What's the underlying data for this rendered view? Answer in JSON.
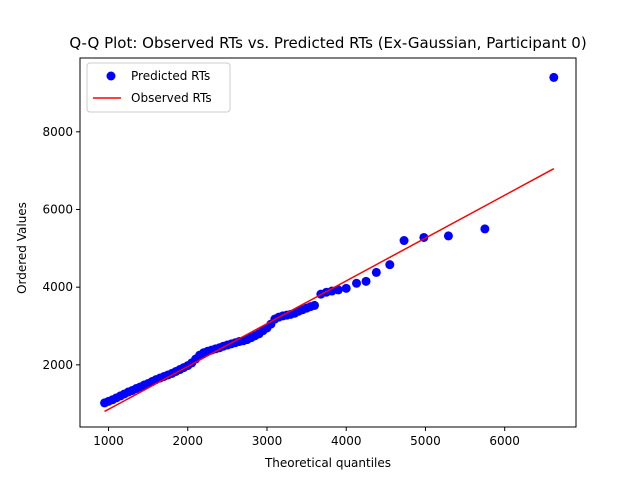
{
  "chart_data": {
    "type": "scatter",
    "title": "Q-Q Plot: Observed RTs vs. Predicted RTs (Ex-Gaussian, Participant 0)",
    "xlabel": "Theoretical quantiles",
    "ylabel": "Ordered Values",
    "xlim": [
      640,
      6900
    ],
    "ylim": [
      400,
      9900
    ],
    "x_ticks": [
      1000,
      2000,
      3000,
      4000,
      5000,
      6000
    ],
    "y_ticks": [
      2000,
      4000,
      6000,
      8000
    ],
    "grid": false,
    "legend": {
      "placement": "top-left",
      "entries": [
        "Predicted RTs",
        "Observed RTs"
      ]
    },
    "series": [
      {
        "name": "Predicted RTs",
        "kind": "scatter",
        "color": "#0000ff",
        "x": [
          950,
          1000,
          1050,
          1100,
          1150,
          1200,
          1250,
          1300,
          1350,
          1400,
          1450,
          1500,
          1550,
          1600,
          1650,
          1700,
          1750,
          1800,
          1850,
          1900,
          1950,
          2000,
          2050,
          2100,
          2150,
          2200,
          2250,
          2300,
          2350,
          2400,
          2450,
          2500,
          2550,
          2600,
          2650,
          2700,
          2750,
          2800,
          2850,
          2900,
          2950,
          3000,
          3050,
          3100,
          3150,
          3200,
          3250,
          3300,
          3350,
          3400,
          3450,
          3500,
          3550,
          3600,
          3680,
          3750,
          3820,
          3900,
          4000,
          4130,
          4250,
          4380,
          4550,
          4730,
          4980,
          5290,
          5750,
          6620
        ],
        "y": [
          1020,
          1060,
          1100,
          1150,
          1200,
          1250,
          1300,
          1340,
          1390,
          1430,
          1480,
          1520,
          1570,
          1620,
          1660,
          1700,
          1740,
          1780,
          1830,
          1880,
          1930,
          1980,
          2050,
          2150,
          2250,
          2310,
          2350,
          2380,
          2410,
          2440,
          2480,
          2510,
          2540,
          2570,
          2600,
          2620,
          2650,
          2700,
          2750,
          2800,
          2880,
          2950,
          3050,
          3180,
          3230,
          3260,
          3280,
          3300,
          3330,
          3380,
          3420,
          3460,
          3500,
          3530,
          3820,
          3870,
          3900,
          3930,
          3970,
          4100,
          4150,
          4380,
          4580,
          5200,
          5280,
          5320,
          5500,
          9400
        ]
      },
      {
        "name": "Observed RTs",
        "kind": "line",
        "color": "#ff0000",
        "x": [
          950,
          6620
        ],
        "y": [
          800,
          7050
        ]
      }
    ]
  }
}
